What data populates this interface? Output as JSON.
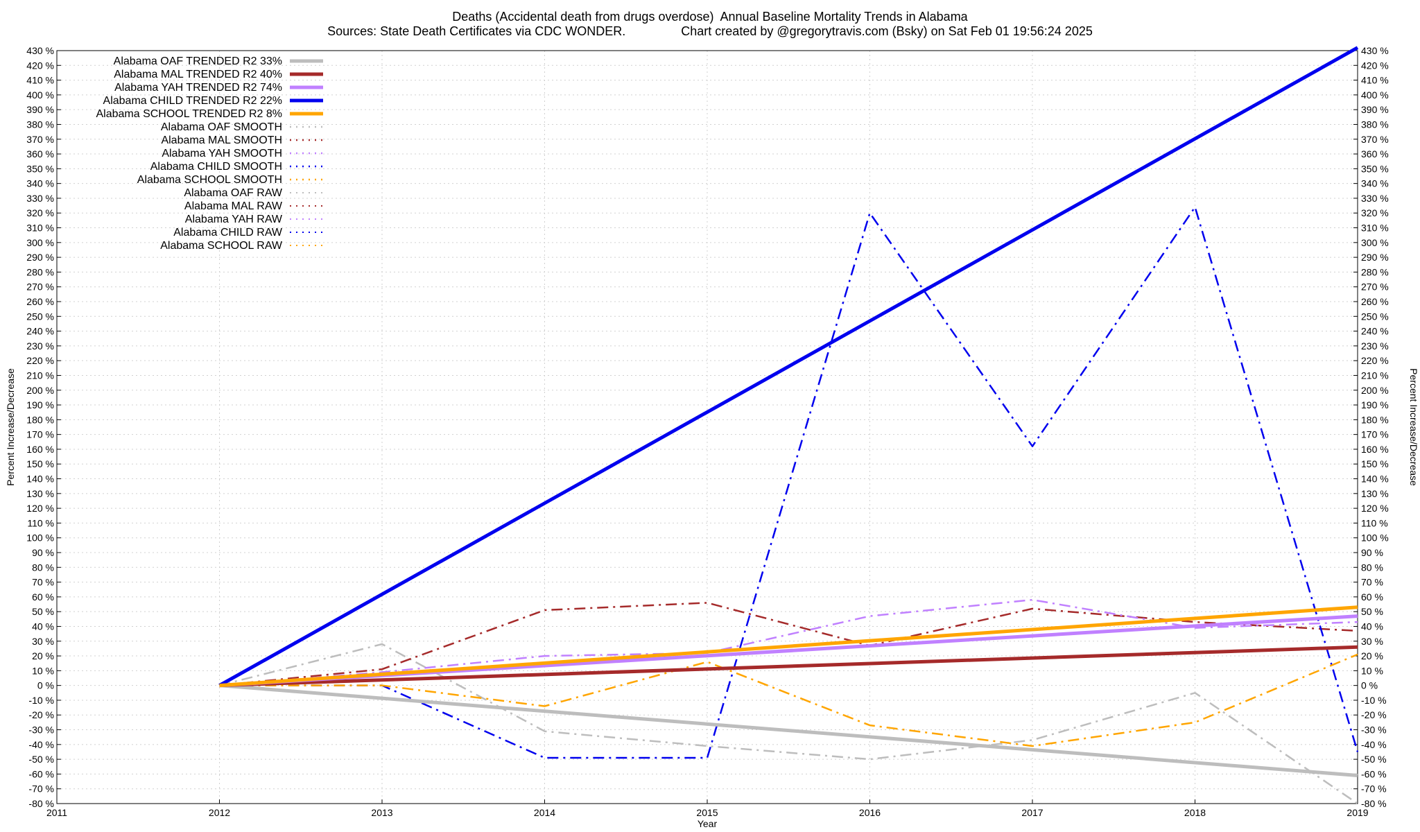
{
  "title_line1": "Deaths (Accidental death from drugs overdose)  Annual Baseline Mortality Trends in Alabama",
  "title_line2": "Sources: State Death Certificates via CDC WONDER.                Chart created by @gregorytravis.com (Bsky) on Sat Feb 01 19:56:24 2025",
  "chart_data": {
    "type": "line",
    "xlabel": "Year",
    "ylabel": "Percent Increase/Decrease",
    "y2label": "Percent Increase/Decrease",
    "xlim": [
      2011,
      2019
    ],
    "ylim": [
      -80,
      430
    ],
    "x_ticks": [
      2011,
      2012,
      2013,
      2014,
      2015,
      2016,
      2017,
      2018,
      2019
    ],
    "y_tick_step": 10,
    "y_tick_suffix": " %",
    "grid": true,
    "legend_position": "top-left",
    "series": [
      {
        "name": "Alabama OAF TRENDED R2  33%",
        "style": "trend",
        "color": "#bdbdbd",
        "x": [
          2012,
          2019
        ],
        "y": [
          0,
          -61
        ]
      },
      {
        "name": "Alabama MAL TRENDED R2  40%",
        "style": "trend",
        "color": "#a52a2a",
        "x": [
          2012,
          2019
        ],
        "y": [
          0,
          26
        ]
      },
      {
        "name": "Alabama YAH TRENDED R2  74%",
        "style": "trend",
        "color": "#c080ff",
        "x": [
          2012,
          2019
        ],
        "y": [
          0,
          47
        ]
      },
      {
        "name": "Alabama CHILD TRENDED R2  22%",
        "style": "trend",
        "color": "#0000ee",
        "x": [
          2012,
          2019
        ],
        "y": [
          0,
          432
        ]
      },
      {
        "name": "Alabama SCHOOL TRENDED R2   8%",
        "style": "trend",
        "color": "#ffa500",
        "x": [
          2012,
          2019
        ],
        "y": [
          0,
          53
        ]
      },
      {
        "name": "Alabama OAF SMOOTH",
        "style": "smooth",
        "color": "#bdbdbd",
        "x": [
          2012,
          2013,
          2014,
          2015,
          2016,
          2017,
          2018,
          2019
        ],
        "y": [
          0,
          28,
          -31,
          -41,
          -50,
          -37,
          -5,
          -80
        ]
      },
      {
        "name": "Alabama MAL SMOOTH",
        "style": "smooth",
        "color": "#a52a2a",
        "x": [
          2012,
          2013,
          2014,
          2015,
          2016,
          2017,
          2018,
          2019
        ],
        "y": [
          0,
          11,
          51,
          56,
          27,
          52,
          43,
          37
        ]
      },
      {
        "name": "Alabama YAH SMOOTH",
        "style": "smooth",
        "color": "#c080ff",
        "x": [
          2012,
          2013,
          2014,
          2015,
          2016,
          2017,
          2018,
          2019
        ],
        "y": [
          0,
          9,
          20,
          22,
          47,
          58,
          39,
          43
        ]
      },
      {
        "name": "Alabama CHILD SMOOTH",
        "style": "smooth",
        "color": "#0000ee",
        "x": [
          2012,
          2013,
          2014,
          2015,
          2016,
          2017,
          2018,
          2019
        ],
        "y": [
          0,
          0,
          -49,
          -49,
          320,
          162,
          324,
          -45
        ]
      },
      {
        "name": "Alabama SCHOOL SMOOTH",
        "style": "smooth",
        "color": "#ffa500",
        "x": [
          2012,
          2013,
          2014,
          2015,
          2016,
          2017,
          2018,
          2019
        ],
        "y": [
          0,
          0,
          -14,
          16,
          -27,
          -41,
          -25,
          21
        ]
      },
      {
        "name": "Alabama OAF RAW",
        "style": "raw",
        "color": "#bdbdbd",
        "x": [],
        "y": []
      },
      {
        "name": "Alabama MAL RAW",
        "style": "raw",
        "color": "#a52a2a",
        "x": [],
        "y": []
      },
      {
        "name": "Alabama YAH RAW",
        "style": "raw",
        "color": "#c080ff",
        "x": [],
        "y": []
      },
      {
        "name": "Alabama CHILD RAW",
        "style": "raw",
        "color": "#0000ee",
        "x": [],
        "y": []
      },
      {
        "name": "Alabama SCHOOL RAW",
        "style": "raw",
        "color": "#ffa500",
        "x": [],
        "y": []
      }
    ]
  }
}
